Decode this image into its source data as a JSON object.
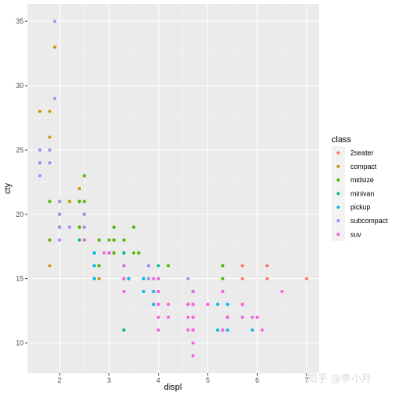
{
  "chart_data": {
    "type": "scatter",
    "xlabel": "displ",
    "ylabel": "cty",
    "xlim": [
      1.35,
      7.25
    ],
    "ylim": [
      7.65,
      36.35
    ],
    "x_ticks": [
      2,
      3,
      4,
      5,
      6,
      7
    ],
    "y_ticks": [
      10,
      15,
      20,
      25,
      30,
      35
    ],
    "grid": true,
    "legend_position": "right",
    "legend_title": "class",
    "series": [
      {
        "name": "2seater",
        "color": "#F8766D",
        "points": [
          [
            5.7,
            16
          ],
          [
            5.7,
            15
          ],
          [
            6.2,
            16
          ],
          [
            6.2,
            15
          ],
          [
            7.0,
            15
          ]
        ]
      },
      {
        "name": "compact",
        "color": "#C49A00",
        "points": [
          [
            1.8,
            18
          ],
          [
            1.8,
            21
          ],
          [
            2.0,
            20
          ],
          [
            2.0,
            21
          ],
          [
            2.8,
            16
          ],
          [
            2.8,
            18
          ],
          [
            3.1,
            18
          ],
          [
            1.8,
            18
          ],
          [
            1.8,
            16
          ],
          [
            2.0,
            20
          ],
          [
            2.0,
            19
          ],
          [
            2.8,
            15
          ],
          [
            3.1,
            17
          ],
          [
            1.9,
            33
          ],
          [
            2.0,
            21
          ],
          [
            2.5,
            19
          ],
          [
            2.5,
            20
          ],
          [
            2.2,
            21
          ],
          [
            2.4,
            21
          ],
          [
            2.4,
            22
          ],
          [
            1.8,
            24
          ],
          [
            1.8,
            28
          ],
          [
            1.8,
            26
          ],
          [
            3.0,
            17
          ],
          [
            3.3,
            18
          ],
          [
            1.8,
            25
          ],
          [
            2.5,
            19
          ],
          [
            2.2,
            21
          ],
          [
            2.4,
            19
          ],
          [
            1.6,
            28
          ],
          [
            2.0,
            20
          ]
        ]
      },
      {
        "name": "midsize",
        "color": "#53B400",
        "points": [
          [
            2.8,
            16
          ],
          [
            3.1,
            18
          ],
          [
            4.2,
            16
          ],
          [
            2.4,
            19
          ],
          [
            2.4,
            21
          ],
          [
            3.1,
            18
          ],
          [
            3.5,
            19
          ],
          [
            3.6,
            17
          ],
          [
            2.4,
            19
          ],
          [
            3.0,
            17
          ],
          [
            3.3,
            18
          ],
          [
            3.3,
            17
          ],
          [
            3.3,
            11
          ],
          [
            3.8,
            15
          ],
          [
            2.5,
            23
          ],
          [
            2.5,
            21
          ],
          [
            3.5,
            19
          ],
          [
            3.0,
            18
          ],
          [
            1.8,
            21
          ],
          [
            2.0,
            19
          ],
          [
            2.7,
            17
          ],
          [
            2.4,
            21
          ],
          [
            2.5,
            18
          ],
          [
            2.8,
            18
          ],
          [
            3.1,
            19
          ],
          [
            3.1,
            17
          ],
          [
            5.3,
            16
          ],
          [
            5.3,
            15
          ],
          [
            2.5,
            20
          ],
          [
            3.5,
            17
          ],
          [
            2.4,
            18
          ],
          [
            1.8,
            18
          ],
          [
            5.3,
            16
          ]
        ]
      },
      {
        "name": "minivan",
        "color": "#00C094",
        "points": [
          [
            2.4,
            18
          ],
          [
            3.0,
            17
          ],
          [
            3.3,
            17
          ],
          [
            3.3,
            16
          ],
          [
            3.3,
            17
          ],
          [
            3.3,
            15
          ],
          [
            3.3,
            15
          ],
          [
            3.8,
            15
          ],
          [
            3.8,
            16
          ],
          [
            4.0,
            16
          ],
          [
            3.3,
            11
          ]
        ]
      },
      {
        "name": "pickup",
        "color": "#00B6EB",
        "points": [
          [
            2.7,
            15
          ],
          [
            2.7,
            17
          ],
          [
            2.7,
            16
          ],
          [
            3.7,
            15
          ],
          [
            3.7,
            14
          ],
          [
            3.9,
            14
          ],
          [
            3.9,
            13
          ],
          [
            4.7,
            11
          ],
          [
            4.7,
            12
          ],
          [
            4.7,
            14
          ],
          [
            5.2,
            11
          ],
          [
            5.2,
            13
          ],
          [
            5.7,
            13
          ],
          [
            5.9,
            11
          ],
          [
            4.7,
            14
          ],
          [
            4.7,
            13
          ],
          [
            4.0,
            15
          ],
          [
            4.0,
            14
          ],
          [
            4.7,
            13
          ],
          [
            5.4,
            13
          ],
          [
            5.4,
            12
          ],
          [
            5.4,
            11
          ],
          [
            2.7,
            15
          ],
          [
            2.7,
            16
          ],
          [
            3.4,
            15
          ],
          [
            3.4,
            15
          ],
          [
            4.0,
            15
          ],
          [
            4.0,
            14
          ],
          [
            4.7,
            14
          ],
          [
            4.6,
            13
          ],
          [
            5.4,
            12
          ],
          [
            4.7,
            14
          ],
          [
            3.0,
            17
          ]
        ]
      },
      {
        "name": "subcompact",
        "color": "#A58AFF",
        "points": [
          [
            3.8,
            16
          ],
          [
            3.8,
            15
          ],
          [
            4.0,
            15
          ],
          [
            4.6,
            15
          ],
          [
            1.6,
            24
          ],
          [
            1.6,
            25
          ],
          [
            1.6,
            23
          ],
          [
            1.6,
            24
          ],
          [
            1.6,
            25
          ],
          [
            1.8,
            25
          ],
          [
            2.0,
            20
          ],
          [
            2.0,
            19
          ],
          [
            2.5,
            20
          ],
          [
            2.5,
            19
          ],
          [
            2.2,
            19
          ],
          [
            1.9,
            29
          ],
          [
            1.9,
            35
          ],
          [
            2.0,
            18
          ],
          [
            1.8,
            24
          ],
          [
            2.0,
            21
          ],
          [
            2.5,
            18
          ],
          [
            2.5,
            20
          ]
        ]
      },
      {
        "name": "suv",
        "color": "#FB61D7",
        "points": [
          [
            5.3,
            14
          ],
          [
            5.3,
            11
          ],
          [
            5.3,
            14
          ],
          [
            5.7,
            13
          ],
          [
            6.0,
            12
          ],
          [
            5.7,
            13
          ],
          [
            6.5,
            14
          ],
          [
            5.3,
            11
          ],
          [
            3.9,
            15
          ],
          [
            4.7,
            11
          ],
          [
            4.7,
            13
          ],
          [
            4.7,
            11
          ],
          [
            5.9,
            12
          ],
          [
            4.7,
            9
          ],
          [
            4.7,
            13
          ],
          [
            4.0,
            15
          ],
          [
            4.0,
            14
          ],
          [
            4.6,
            13
          ],
          [
            5.0,
            13
          ],
          [
            4.2,
            12
          ],
          [
            4.2,
            13
          ],
          [
            4.6,
            13
          ],
          [
            4.6,
            12
          ],
          [
            5.4,
            12
          ],
          [
            4.0,
            13
          ],
          [
            4.0,
            14
          ],
          [
            4.6,
            11
          ],
          [
            5.0,
            13
          ],
          [
            3.3,
            15
          ],
          [
            3.3,
            14
          ],
          [
            4.0,
            13
          ],
          [
            4.0,
            12
          ],
          [
            4.7,
            13
          ],
          [
            4.7,
            14
          ],
          [
            6.1,
            11
          ],
          [
            4.6,
            13
          ],
          [
            5.4,
            12
          ],
          [
            2.9,
            17
          ],
          [
            3.0,
            17
          ],
          [
            2.5,
            18
          ],
          [
            4.0,
            11
          ],
          [
            4.0,
            14
          ],
          [
            4.7,
            11
          ],
          [
            3.3,
            16
          ],
          [
            3.3,
            15
          ],
          [
            5.7,
            12
          ],
          [
            5.7,
            13
          ],
          [
            4.7,
            12
          ],
          [
            4.7,
            10
          ],
          [
            4.0,
            14
          ]
        ]
      }
    ]
  },
  "watermark": "知乎 @李小月"
}
